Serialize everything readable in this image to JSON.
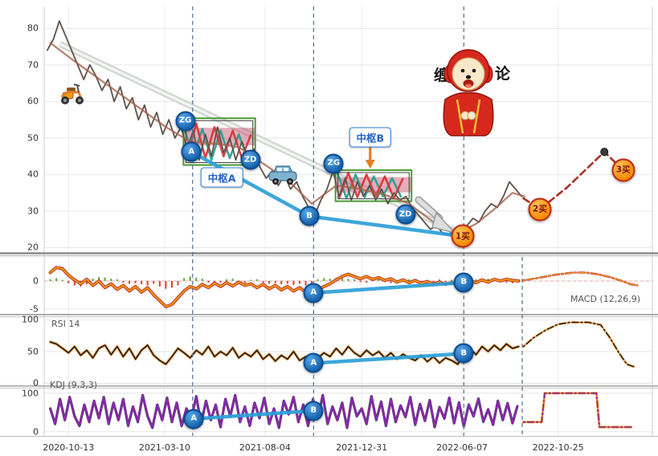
{
  "mascot": {
    "char_left": "缠",
    "char_right": "论"
  },
  "colors": {
    "connector": "#2b9fd8",
    "vline": "#5b7a9d",
    "box_border": "#4a9a35",
    "box_inner": "#3d3d3d",
    "band_fill": "rgba(190,60,90,0.42)",
    "red": "#d63031",
    "teal": "#1f9e8e",
    "hist_pos": "#57a639",
    "hist_neg": "#d64533",
    "grid": "#e6e6e6",
    "axis_text": "#333333",
    "projection": "#a93226",
    "buy_fill": "#ff9e17",
    "buy_border": "#bf2a12",
    "badge_fill": "#1f6fc0"
  },
  "chart_data": {
    "type": "line",
    "title": "缠论 multi-panel stock analysis chart",
    "x_ticks": [
      {
        "label": "2020-10-13",
        "t": 4.0
      },
      {
        "label": "2021-03-10",
        "t": 19.8
      },
      {
        "label": "2021-08-04",
        "t": 36.3
      },
      {
        "label": "2021-12-31",
        "t": 52.2
      },
      {
        "label": "2022-06-07",
        "t": 68.7
      },
      {
        "label": "2022-10-25",
        "t": 84.5
      }
    ],
    "panels": {
      "price": {
        "ylim": [
          19,
          86
        ],
        "yticks": [
          80,
          70,
          60,
          50,
          40,
          30,
          20
        ]
      },
      "macd": {
        "ylim": [
          -5.6,
          4.3
        ],
        "yticks": [
          0,
          -5
        ],
        "title": "MACD (12,26,9)"
      },
      "rsi": {
        "ylim": [
          -2,
          103
        ],
        "yticks": [
          100,
          50,
          0
        ],
        "title": "RSI 14"
      },
      "kdj": {
        "ylim": [
          -11,
          112
        ],
        "yticks": [
          100,
          0
        ],
        "title": "KDJ (9,3,3)"
      }
    },
    "series": [
      {
        "id": "price",
        "panel": "price",
        "x_start": 0.5,
        "x_step": 1.0,
        "values": [
          74,
          77,
          82,
          78,
          74,
          70,
          66,
          70,
          67,
          63,
          66,
          60,
          64,
          58,
          61,
          55,
          59,
          53,
          57,
          51,
          55,
          50,
          53,
          47,
          52,
          44,
          51,
          45,
          53,
          46,
          50,
          44,
          49,
          45,
          47,
          42,
          39,
          41,
          37,
          40,
          36,
          38,
          34,
          31,
          29,
          33,
          36,
          41,
          34,
          39,
          33,
          38,
          34,
          37,
          33,
          36,
          32,
          35,
          33,
          34,
          31,
          29,
          27,
          25,
          26,
          24,
          23.5,
          25,
          23,
          26,
          28,
          27,
          30,
          32,
          31,
          34,
          38,
          36,
          34
        ],
        "strokes": [
          {
            "color": "#b0876f",
            "width": 2.6,
            "opacity": 0.5
          },
          {
            "color": "#454545",
            "width": 1.3
          }
        ]
      },
      {
        "id": "price-ma",
        "panel": "price",
        "points": [
          [
            1,
            76
          ],
          [
            5,
            71
          ],
          [
            10,
            65
          ],
          [
            15,
            59
          ],
          [
            20,
            53
          ],
          [
            24,
            49
          ],
          [
            28,
            48.5
          ],
          [
            32,
            47.5
          ],
          [
            36,
            43
          ],
          [
            40,
            38.5
          ],
          [
            44,
            32
          ],
          [
            48,
            37
          ],
          [
            52,
            36
          ],
          [
            56,
            34.5
          ],
          [
            60,
            32
          ],
          [
            64,
            27
          ],
          [
            68,
            24
          ],
          [
            71,
            26.5
          ],
          [
            74,
            30.5
          ],
          [
            77,
            35
          ],
          [
            79,
            34
          ]
        ],
        "strokes": [
          {
            "color": "#a5604a",
            "width": 2.2,
            "opacity": 0.8
          }
        ]
      },
      {
        "id": "price-projection",
        "panel": "price",
        "dash": "8 5",
        "points": [
          [
            78.8,
            33.5
          ],
          [
            81.5,
            30.5
          ],
          [
            86,
            36.5
          ],
          [
            92.1,
            46.2
          ],
          [
            95.2,
            41.2
          ]
        ],
        "strokes": [
          {
            "color": "#a93226",
            "width": 2.6
          }
        ]
      },
      {
        "id": "macd-hist",
        "panel": "macd",
        "type": "bar",
        "x_start": 1,
        "x_step": 1,
        "values": [
          0.3,
          0.5,
          0.2,
          -0.4,
          -0.8,
          -1.0,
          -0.6,
          0.4,
          0.7,
          0.6,
          0.4,
          0.3,
          -0.3,
          -0.5,
          -0.4,
          -0.6,
          -0.8,
          -0.5,
          -1.0,
          -1.4,
          -1.2,
          -0.8,
          0.5,
          0.8,
          0.6,
          0.4,
          -0.3,
          -0.5,
          -0.3,
          0.3,
          0.4,
          -0.2,
          -0.4,
          0.2,
          0.3,
          -0.3,
          -0.5,
          -0.4,
          -0.6,
          -0.5,
          -0.7,
          -0.5,
          -0.8,
          -0.6,
          0.3,
          0.5,
          0.4,
          0.6,
          0.5,
          0.4,
          0.3,
          -0.2,
          -0.3,
          0.2,
          0.3,
          -0.2,
          -0.4,
          -0.3,
          0.2,
          0.3,
          -0.2,
          -0.3,
          0.2,
          -0.2,
          0.3,
          -0.3,
          0.2,
          -0.2,
          0.3,
          0.4,
          0.3,
          -0.2,
          0.4,
          0.5,
          0.3,
          -0.3,
          -0.4,
          0.2
        ]
      },
      {
        "id": "macd-dif",
        "panel": "macd",
        "x_start": 1,
        "x_step": 1,
        "values": [
          1.5,
          2.4,
          2.2,
          1.0,
          0.2,
          -0.5,
          0.3,
          -0.8,
          0.0,
          -1.2,
          -0.5,
          -1.5,
          -0.8,
          -1.8,
          -1.0,
          -2.0,
          -1.2,
          -2.5,
          -3.5,
          -4.6,
          -4.2,
          -3.0,
          -1.8,
          -1.0,
          -1.4,
          -0.6,
          -1.2,
          -0.4,
          -1.0,
          -0.3,
          -0.9,
          -0.2,
          -0.8,
          -0.5,
          -1.2,
          -0.6,
          -1.4,
          -0.8,
          -1.6,
          -1.0,
          -1.8,
          -1.2,
          -2.0,
          -2.1,
          -1.6,
          -1.0,
          -0.5,
          0.2,
          0.8,
          1.2,
          0.8,
          0.4,
          0.8,
          0.3,
          0.6,
          0.1,
          0.4,
          -0.2,
          0.2,
          -0.3,
          0.1,
          -0.4,
          -0.1,
          -0.5,
          -0.2,
          -0.6,
          -0.3,
          -0.4,
          -0.3,
          0.0,
          -0.3,
          0.2,
          -0.2,
          0.3,
          0.0,
          0.3,
          0.1,
          0.0
        ],
        "strokes": [
          {
            "color": "#c0392b",
            "width": 4
          },
          {
            "color": "#f39c12",
            "width": 1.8
          }
        ]
      },
      {
        "id": "macd-projection",
        "panel": "macd",
        "dash": "2 3 8 3",
        "points": [
          [
            78.8,
            0.1
          ],
          [
            81,
            0.5
          ],
          [
            84,
            1.1
          ],
          [
            87,
            1.5
          ],
          [
            89,
            1.5
          ],
          [
            91,
            1.2
          ],
          [
            93,
            0.7
          ],
          [
            95,
            0.0
          ],
          [
            96.5,
            -0.6
          ],
          [
            97.5,
            -0.8
          ]
        ],
        "strokes": [
          {
            "color": "#c0392b",
            "width": 2.6
          },
          {
            "color": "#f5a623",
            "width": 1.2
          }
        ]
      },
      {
        "id": "rsi",
        "panel": "rsi",
        "x_start": 1,
        "x_step": 1,
        "values": [
          65,
          62,
          55,
          48,
          58,
          44,
          52,
          40,
          55,
          60,
          45,
          58,
          42,
          55,
          38,
          52,
          60,
          44,
          36,
          30,
          42,
          55,
          48,
          40,
          52,
          45,
          58,
          42,
          50,
          44,
          56,
          40,
          48,
          42,
          52,
          38,
          46,
          35,
          44,
          38,
          50,
          36,
          42,
          32,
          40,
          48,
          42,
          55,
          45,
          58,
          48,
          42,
          52,
          44,
          50,
          40,
          48,
          38,
          46,
          40,
          36,
          44,
          34,
          42,
          32,
          40,
          36,
          30,
          47,
          55,
          45,
          58,
          50,
          60,
          52,
          62,
          55,
          58
        ],
        "strokes": [
          {
            "color": "#f0a050",
            "width": 3.6,
            "opacity": 0.9
          },
          {
            "color": "#141414",
            "width": 1.5
          }
        ]
      },
      {
        "id": "rsi-projection",
        "panel": "rsi",
        "dash": "2 3 8 3",
        "points": [
          [
            78.8,
            58
          ],
          [
            80.5,
            72
          ],
          [
            82.5,
            84
          ],
          [
            84.5,
            93
          ],
          [
            86.5,
            96
          ],
          [
            89.5,
            96
          ],
          [
            91.5,
            92
          ],
          [
            93,
            72
          ],
          [
            94.5,
            48
          ],
          [
            95.8,
            30
          ],
          [
            97,
            26
          ]
        ],
        "strokes": [
          {
            "color": "#f0a050",
            "width": 3
          },
          {
            "color": "#141414",
            "width": 1.3
          }
        ]
      },
      {
        "id": "kdj",
        "panel": "kdj",
        "x_start": 1,
        "x_step": 0.8,
        "values": [
          60,
          20,
          85,
          30,
          90,
          40,
          15,
          70,
          25,
          80,
          35,
          90,
          20,
          75,
          30,
          85,
          15,
          65,
          25,
          95,
          40,
          10,
          70,
          30,
          88,
          25,
          75,
          15,
          60,
          35,
          92,
          20,
          80,
          30,
          70,
          12,
          85,
          40,
          95,
          25,
          65,
          15,
          75,
          35,
          88,
          20,
          60,
          10,
          80,
          45,
          90,
          25,
          70,
          15,
          85,
          35,
          95,
          20,
          65,
          30,
          75,
          10,
          88,
          40,
          60,
          20,
          92,
          30,
          78,
          15,
          85,
          25,
          68,
          38,
          90,
          18,
          72,
          28,
          82,
          12,
          64,
          34,
          88,
          22,
          76,
          14,
          70,
          40,
          86,
          26,
          58,
          18,
          80,
          30,
          74,
          22,
          66
        ],
        "strokes": [
          {
            "color": "#43115c",
            "width": 3.2,
            "opacity": 0.85
          },
          {
            "color": "#9127b8",
            "width": 1.5
          }
        ]
      },
      {
        "id": "kdj-projection",
        "panel": "kdj",
        "dash": "2 3 8 3",
        "points": [
          [
            78.8,
            25
          ],
          [
            81.8,
            25
          ],
          [
            82.3,
            100
          ],
          [
            90.8,
            100
          ],
          [
            91.3,
            12
          ],
          [
            96.5,
            12
          ]
        ],
        "strokes": [
          {
            "color": "#e67e22",
            "width": 3
          },
          {
            "color": "#7b1fa2",
            "width": 1.3
          }
        ]
      }
    ]
  },
  "annotations": {
    "badges": [
      {
        "panel": "price",
        "t": 23.2,
        "v": 54.6,
        "label": "ZG",
        "kind": "pivot"
      },
      {
        "panel": "price",
        "t": 24.2,
        "v": 46.2,
        "label": "A",
        "kind": "point"
      },
      {
        "panel": "price",
        "t": 33.9,
        "v": 44.0,
        "label": "ZD",
        "kind": "pivot"
      },
      {
        "panel": "price",
        "t": 43.6,
        "v": 28.6,
        "label": "B",
        "kind": "point"
      },
      {
        "panel": "price",
        "t": 47.6,
        "v": 43.0,
        "label": "ZG",
        "kind": "pivot"
      },
      {
        "panel": "price",
        "t": 59.4,
        "v": 29.0,
        "label": "ZD",
        "kind": "pivot"
      },
      {
        "panel": "price",
        "t": 68.8,
        "v": 23.1,
        "label": "1买",
        "kind": "buy"
      },
      {
        "panel": "price",
        "t": 81.5,
        "v": 30.5,
        "label": "2买",
        "kind": "buy"
      },
      {
        "panel": "price",
        "t": 95.2,
        "v": 41.2,
        "label": "3买",
        "kind": "buy"
      },
      {
        "panel": "macd",
        "t": 44.3,
        "v": -2.14,
        "label": "A",
        "kind": "point"
      },
      {
        "panel": "macd",
        "t": 69.0,
        "v": -0.29,
        "label": "B",
        "kind": "point"
      },
      {
        "panel": "rsi",
        "t": 44.3,
        "v": 31.6,
        "label": "A",
        "kind": "point"
      },
      {
        "panel": "rsi",
        "t": 69.0,
        "v": 46.8,
        "label": "B",
        "kind": "point"
      },
      {
        "panel": "kdj",
        "t": 24.6,
        "v": 33.3,
        "label": "A",
        "kind": "point"
      },
      {
        "panel": "kdj",
        "t": 44.3,
        "v": 54.2,
        "label": "B",
        "kind": "point"
      }
    ],
    "pivot_labels": [
      {
        "label": "中枢A",
        "t": 29.2,
        "v": 39.2,
        "arrow": null
      },
      {
        "label": "中枢B",
        "t": 53.6,
        "v": 50.2,
        "arrow": "down"
      }
    ],
    "connectors": [
      {
        "panel": "price",
        "points": [
          [
            24.2,
            46.2
          ],
          [
            43.6,
            28.6
          ],
          [
            68.8,
            23.1
          ]
        ]
      },
      {
        "panel": "macd",
        "points": [
          [
            44.3,
            -2.14
          ],
          [
            69,
            -0.29
          ]
        ]
      },
      {
        "panel": "rsi",
        "points": [
          [
            44.3,
            31.6
          ],
          [
            69,
            46.8
          ]
        ]
      },
      {
        "panel": "kdj",
        "points": [
          [
            24.6,
            33.3
          ],
          [
            44.3,
            54.2
          ]
        ]
      }
    ],
    "vlines": [
      {
        "t": 24.4,
        "span": "full"
      },
      {
        "t": 44.3,
        "span": "full"
      },
      {
        "t": 69.0,
        "span": "full"
      },
      {
        "t": 78.6,
        "span": "lower"
      }
    ],
    "boxes": [
      {
        "t1": 22.9,
        "t2": 34.7,
        "v_low": 42.6,
        "v_high": 55.4,
        "band_v1": 48.0,
        "band_v2": 52.8,
        "zig_red": [
          [
            23.5,
            44
          ],
          [
            25.0,
            54
          ],
          [
            26.5,
            44.5
          ],
          [
            28.0,
            53
          ],
          [
            29.5,
            45
          ],
          [
            31.0,
            52
          ],
          [
            32.5,
            44.5
          ],
          [
            34.0,
            51
          ]
        ],
        "zig_teal": [
          [
            23.0,
            53
          ],
          [
            24.5,
            44.5
          ],
          [
            26.0,
            52.5
          ],
          [
            27.5,
            44
          ],
          [
            29.0,
            52
          ],
          [
            30.5,
            44.5
          ],
          [
            32.0,
            51
          ],
          [
            33.5,
            44
          ]
        ]
      },
      {
        "t1": 47.9,
        "t2": 60.4,
        "v_low": 32.7,
        "v_high": 41.2,
        "band_v1": 35.1,
        "band_v2": 39.3,
        "zig_red": [
          [
            48.5,
            33.5
          ],
          [
            50.0,
            40.5
          ],
          [
            51.5,
            33.8
          ],
          [
            53.0,
            40
          ],
          [
            54.5,
            34
          ],
          [
            56.0,
            39.5
          ],
          [
            57.5,
            33.5
          ],
          [
            59.0,
            39
          ]
        ],
        "zig_teal": [
          [
            48.2,
            40.5
          ],
          [
            49.7,
            33.5
          ],
          [
            51.2,
            40
          ],
          [
            52.7,
            33.8
          ],
          [
            54.2,
            39.5
          ],
          [
            55.7,
            34
          ],
          [
            57.2,
            39
          ],
          [
            58.7,
            33.8
          ]
        ]
      }
    ],
    "channel": {
      "points": [
        [
          2.6,
          75.7
        ],
        [
          68.8,
          23.5
        ]
      ]
    },
    "projection_dot": {
      "t": 92.1,
      "v": 46.2
    }
  }
}
